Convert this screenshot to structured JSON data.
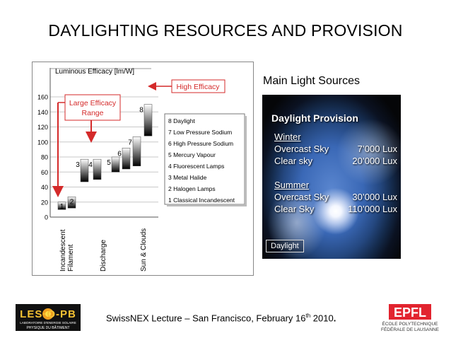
{
  "slide": {
    "title": "DAYLIGHTING RESOURCES AND PROVISION",
    "footer": {
      "prefix": "SwissNEX Lecture – San Francisco, February 16",
      "superscript": "th",
      "suffix": " 2010",
      "end": "."
    }
  },
  "chart_data": {
    "type": "bar",
    "title": "",
    "ylabel": "Luminous Efficacy  [lm/W]",
    "xlabel": "",
    "ylim": [
      0,
      160
    ],
    "yticks": [
      0,
      20,
      40,
      60,
      80,
      100,
      120,
      140,
      160
    ],
    "grid": true,
    "bars": [
      {
        "id": 1,
        "label": "1",
        "low": 10,
        "high": 20
      },
      {
        "id": 2,
        "label": "2",
        "low": 12,
        "high": 27
      },
      {
        "id": 3,
        "label": "3",
        "low": 47,
        "high": 77
      },
      {
        "id": 4,
        "label": "4",
        "low": 50,
        "high": 77
      },
      {
        "id": 5,
        "label": "5",
        "low": 60,
        "high": 80
      },
      {
        "id": 6,
        "label": "6",
        "low": 64,
        "high": 92
      },
      {
        "id": 7,
        "label": "7",
        "low": 68,
        "high": 107
      },
      {
        "id": 8,
        "label": "8",
        "low": 108,
        "high": 150
      }
    ],
    "legend": {
      "position": "right",
      "items": [
        "8 Daylight",
        "7 Low Pressure Sodium",
        "6 High Pressure Sodium",
        "5 Mercury Vapour",
        "4 Fluorescent Lamps",
        "3 Metal Halide",
        "2 Halogen Lamps",
        "1 Classical Incandescent"
      ]
    },
    "groups": [
      {
        "label_lines": [
          "Incandescent",
          "Filament"
        ]
      },
      {
        "label_lines": [
          "Discharge"
        ]
      },
      {
        "label_lines": [
          "Sun & Clouds"
        ]
      }
    ],
    "annotations": {
      "large_range": [
        "Large Efficacy",
        "Range"
      ],
      "high_efficacy": "High Efficacy"
    },
    "colors": {
      "annotation": "#d42a2a",
      "bar_dark": "#000000",
      "bar_light": "#ffffff"
    }
  },
  "sources": {
    "title": "Main Light Sources",
    "heading": "Daylight Provision",
    "caption": "Daylight",
    "seasons": [
      {
        "name": "Winter",
        "rows": [
          {
            "label": "Overcast Sky",
            "value": "7’000 Lux"
          },
          {
            "label": "Clear sky",
            "value": "20’000 Lux"
          }
        ]
      },
      {
        "name": "Summer",
        "rows": [
          {
            "label": "Overcast Sky",
            "value": "30’000 Lux"
          },
          {
            "label": "Clear Sky",
            "value": "110’000 Lux"
          }
        ]
      }
    ]
  },
  "logos": {
    "lesopb": {
      "mark": "LES·O-PB",
      "line1": "LABORATOIRE D'ENERGIE SOLAIRE",
      "line2": "PHYSIQUE DU BÂTIMENT"
    },
    "epfl": {
      "mark": "EPFL",
      "line1": "ÉCOLE POLYTECHNIQUE",
      "line2": "FÉDÉRALE DE LAUSANNE"
    }
  }
}
